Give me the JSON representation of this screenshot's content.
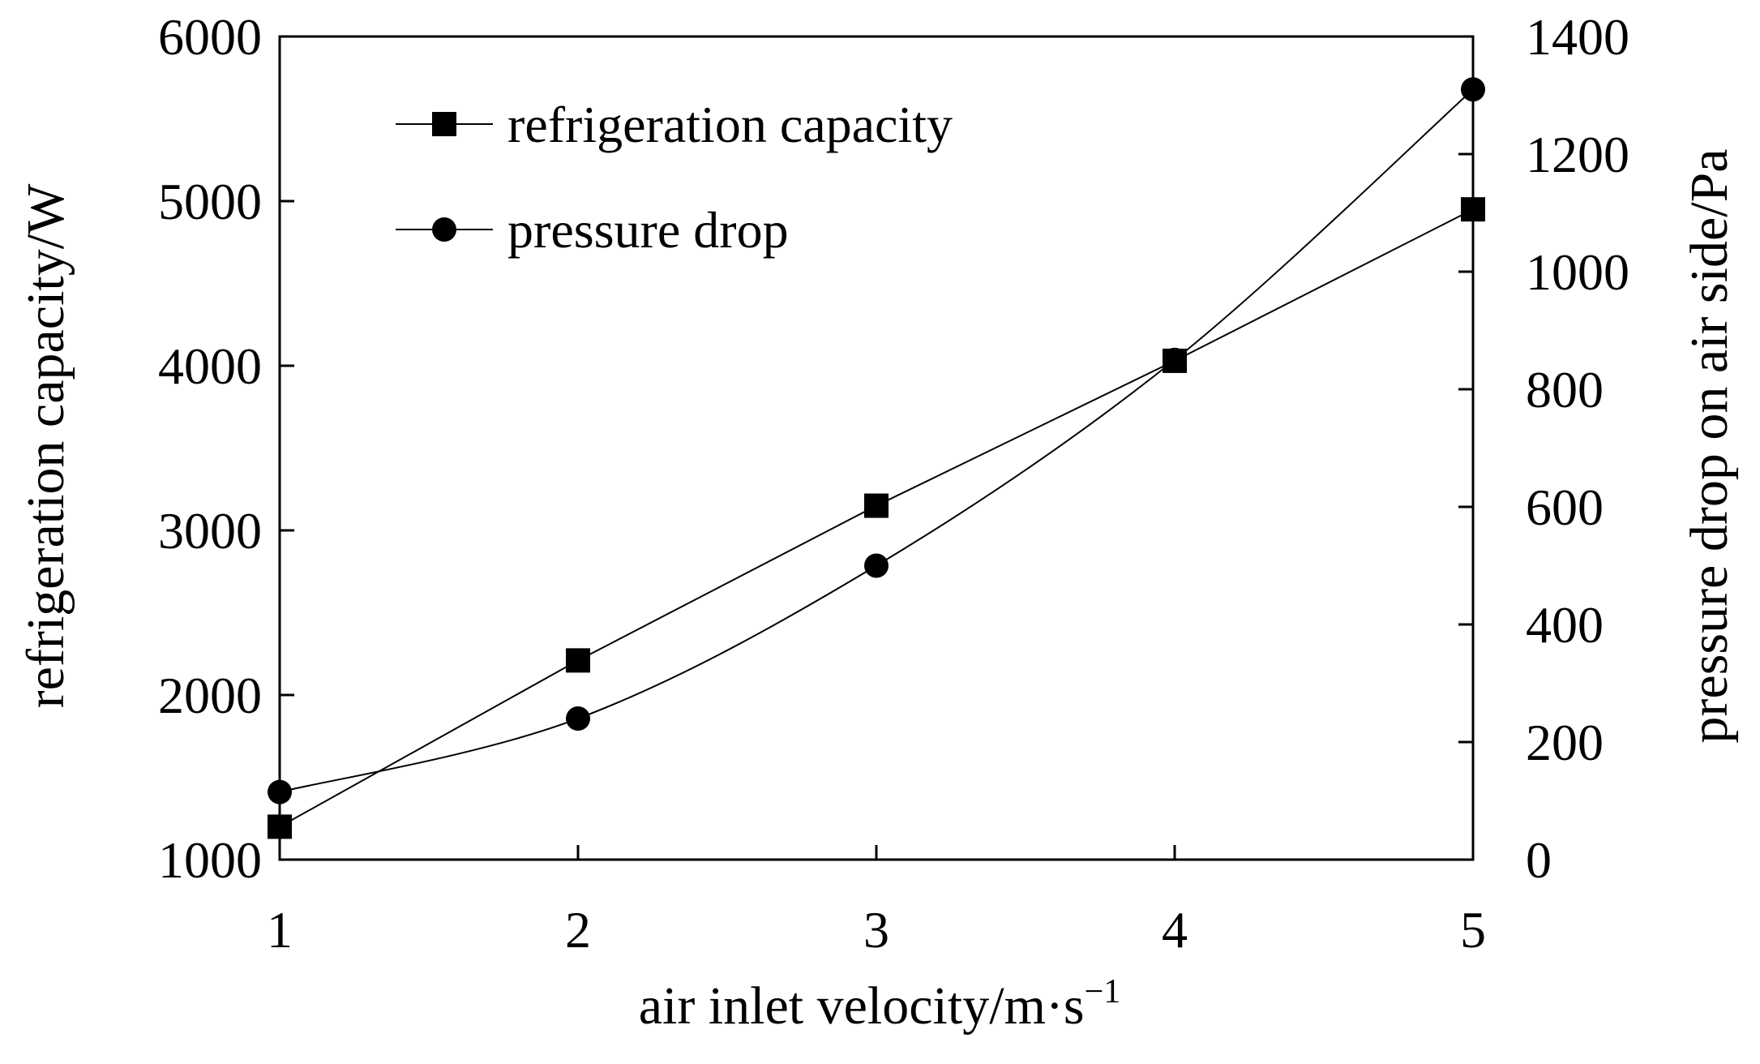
{
  "chart_data": {
    "type": "line",
    "title": "",
    "x": [
      1,
      2,
      3,
      4,
      5
    ],
    "xlabel": "air inlet velocity/m·s",
    "xlabel_sup": "−1",
    "xlim": [
      1,
      5
    ],
    "xticks": [
      "1",
      "2",
      "3",
      "4",
      "5"
    ],
    "ylabel": "refrigeration capacity/W",
    "ylim": [
      1000,
      6000
    ],
    "yticks": [
      "1000",
      "2000",
      "3000",
      "4000",
      "5000",
      "6000"
    ],
    "y2label": "pressure drop on air side/Pa",
    "y2lim": [
      0,
      1400
    ],
    "y2ticks": [
      "0",
      "200",
      "400",
      "600",
      "800",
      "1000",
      "1200",
      "1400"
    ],
    "grid": false,
    "legend_position": "top-left",
    "series": [
      {
        "name": "refrigeration capacity",
        "axis": "left",
        "marker": "square",
        "values": [
          1200,
          2210,
          3150,
          4030,
          4950
        ]
      },
      {
        "name": "pressure drop",
        "axis": "right",
        "marker": "circle",
        "smooth": true,
        "values": [
          115,
          240,
          500,
          850,
          1310
        ]
      }
    ]
  }
}
